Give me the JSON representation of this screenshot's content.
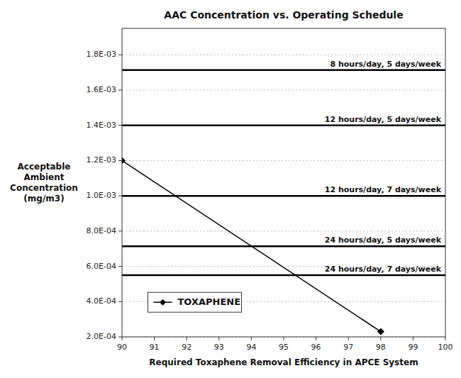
{
  "chart_data": {
    "type": "line",
    "title": "AAC Concentration vs. Operating Schedule",
    "x_label": "Required Toxaphene Removal Efficiency in APCE System",
    "y_label": "Acceptable\nAmbient\nConcentration\n(mg/m3)",
    "x": [
      90,
      98
    ],
    "series": [
      {
        "name": "TOXAPHENE",
        "color": "#000000",
        "marker": "diamond",
        "values": [
          0.0012,
          0.00023
        ]
      }
    ],
    "hlines": [
      {
        "y": 0.001714,
        "label": "8 hours/day, 5 days/week"
      },
      {
        "y": 0.0014,
        "label": "12 hours/day, 5 days/week"
      },
      {
        "y": 0.001,
        "label": "12 hours/day, 7 days/week"
      },
      {
        "y": 0.000714,
        "label": "24 hours/day, 5 days/week"
      },
      {
        "y": 0.00055,
        "label": "24 hours/day, 7 days/week"
      }
    ],
    "xlim": [
      90,
      100
    ],
    "ylim": [
      0.0002,
      0.00195
    ],
    "xticks": [
      90,
      91,
      92,
      93,
      94,
      95,
      96,
      97,
      98,
      99,
      100
    ],
    "yticks": [
      {
        "value": 0.0002,
        "label": "2.0E-04"
      },
      {
        "value": 0.0004,
        "label": "4.0E-04"
      },
      {
        "value": 0.0006,
        "label": "6.0E-04"
      },
      {
        "value": 0.0008,
        "label": "8.0E-04"
      },
      {
        "value": 0.001,
        "label": "1.0E-03"
      },
      {
        "value": 0.0012,
        "label": "1.2E-03"
      },
      {
        "value": 0.0014,
        "label": "1.4E-03"
      },
      {
        "value": 0.0016,
        "label": "1.6E-03"
      },
      {
        "value": 0.0018,
        "label": "1.8E-03"
      }
    ],
    "grid": true,
    "legend": "lower left"
  }
}
